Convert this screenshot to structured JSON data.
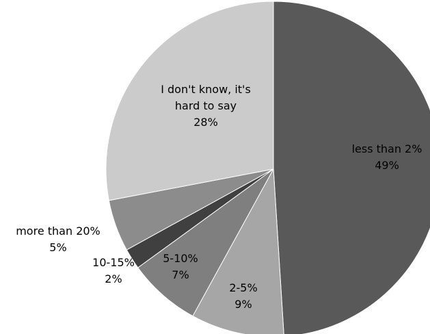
{
  "chart_data": {
    "type": "pie",
    "categories": [
      "less than 2%",
      "2-5%",
      "5-10%",
      "10-15%",
      "more than 20%",
      "I don't know, it's hard to say"
    ],
    "values": [
      49,
      9,
      7,
      2,
      5,
      28
    ],
    "value_labels": [
      "49%",
      "9%",
      "7%",
      "2%",
      "5%",
      "28%"
    ],
    "label_lines": [
      [
        "less than 2%"
      ],
      [
        "2-5%"
      ],
      [
        "5-10%"
      ],
      [
        "10-15%"
      ],
      [
        "more than 20%"
      ],
      [
        "I don't know, it's",
        "hard to say"
      ]
    ],
    "colors": [
      "#595959",
      "#a6a6a6",
      "#7f7f7f",
      "#404040",
      "#8c8c8c",
      "#cbcbcb"
    ],
    "start_angle_deg": 0,
    "direction": "clockwise",
    "legend": "none"
  }
}
